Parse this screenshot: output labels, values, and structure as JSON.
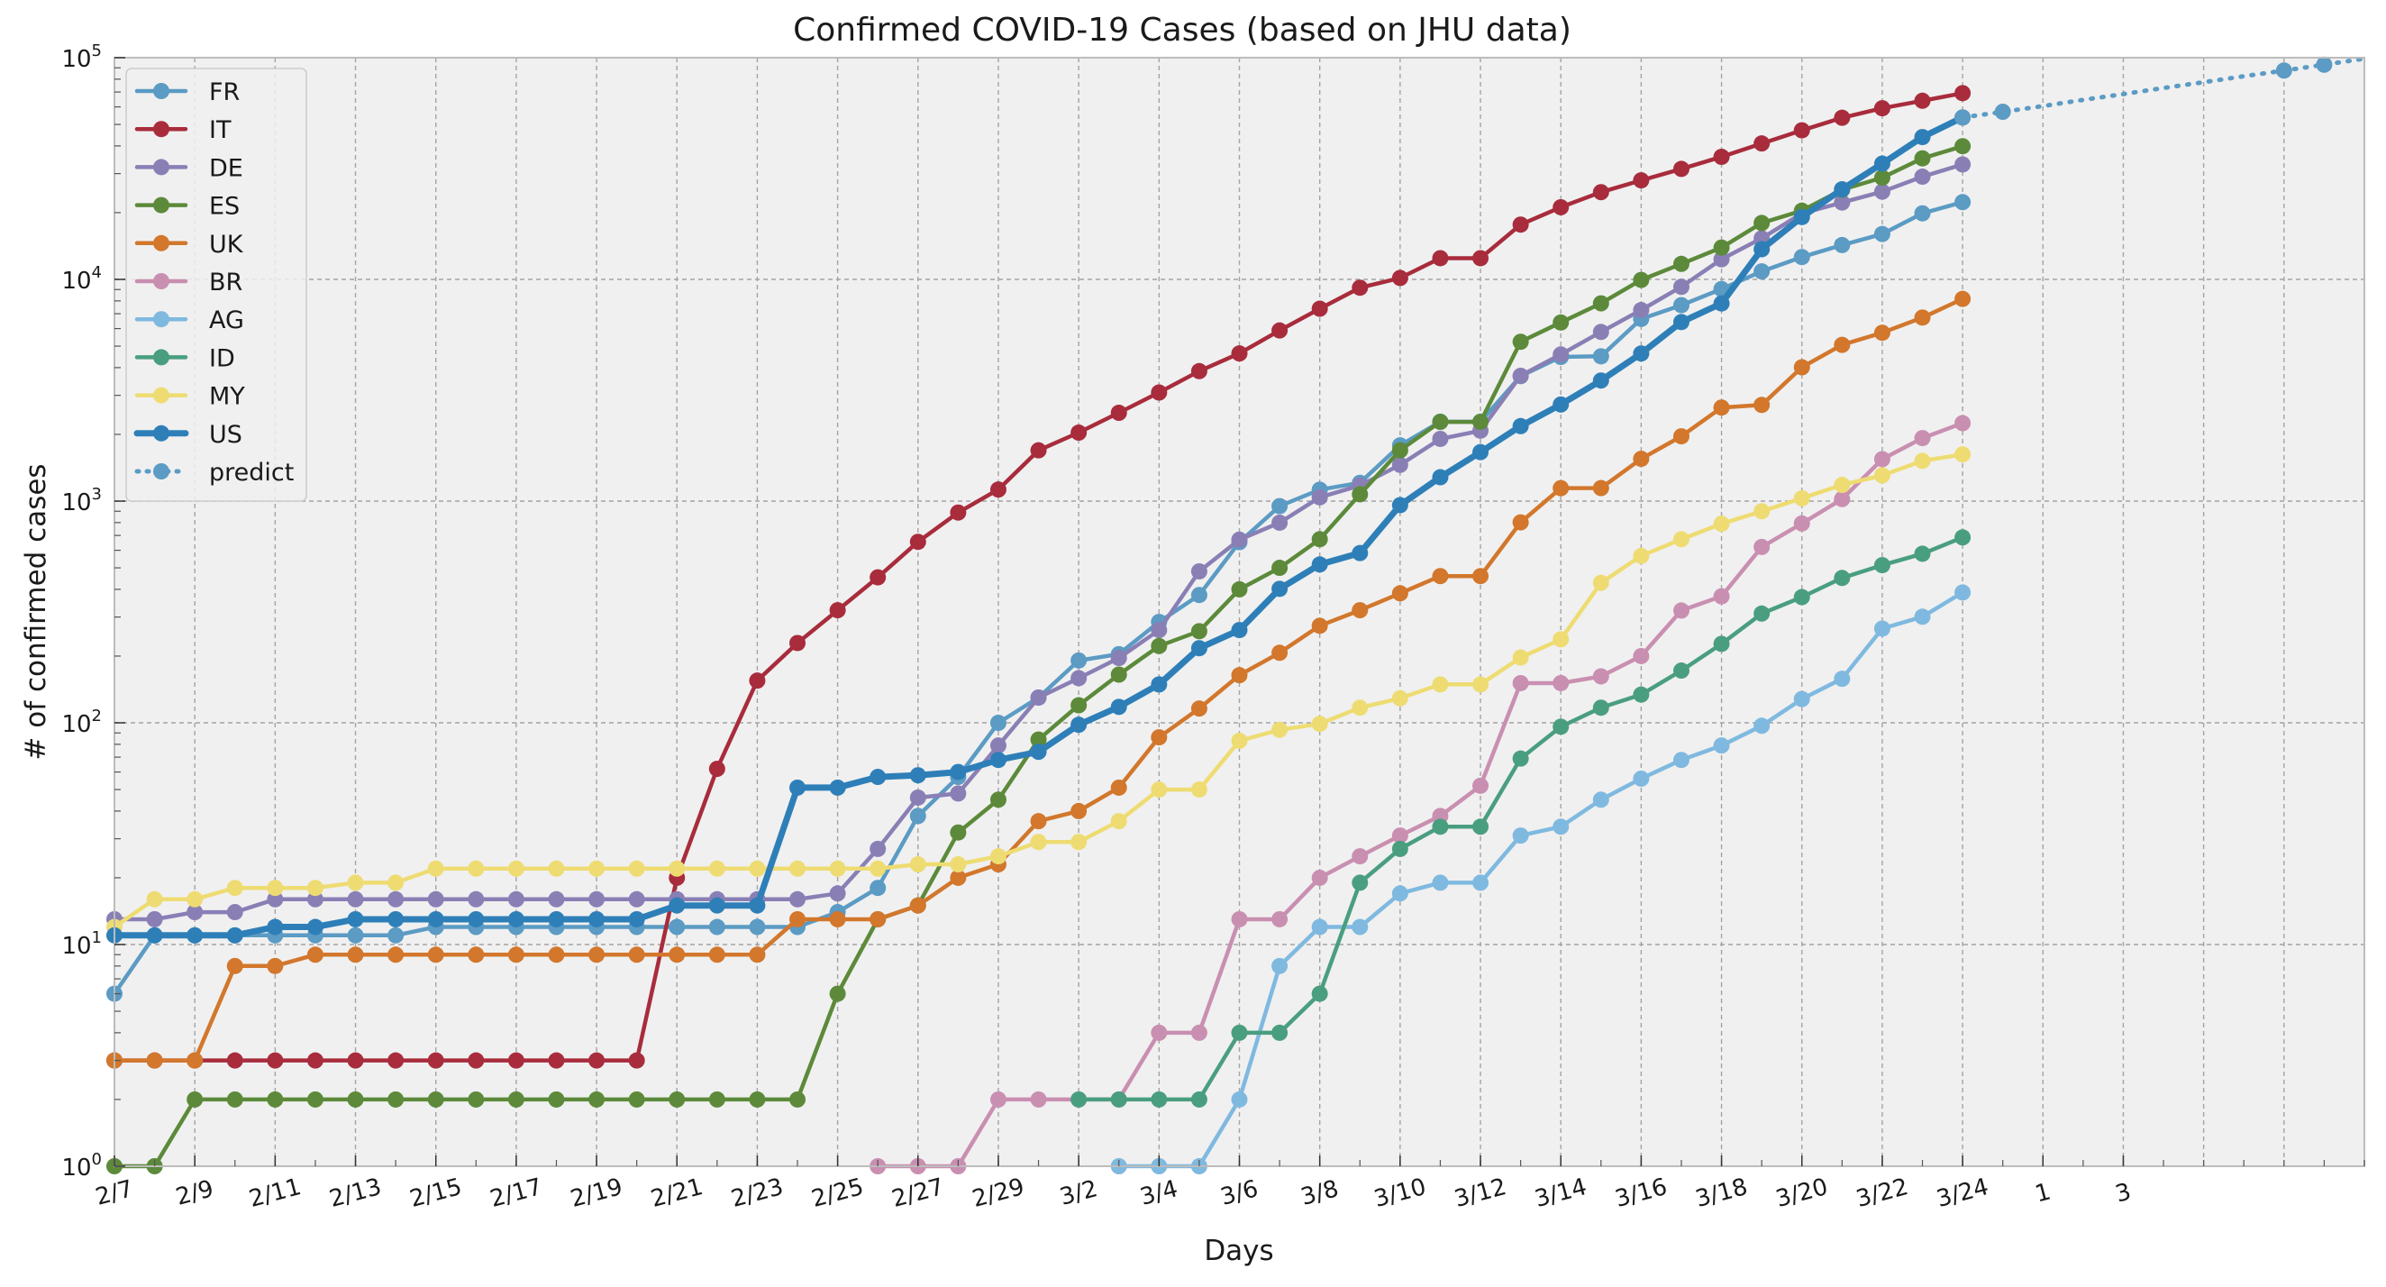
{
  "chart_data": {
    "type": "line",
    "title": "Confirmed COVID-19 Cases (based on JHU data)",
    "xlabel": "Days",
    "ylabel": "# of confirmed cases",
    "yscale": "log",
    "ylim": [
      1,
      100000
    ],
    "y_ticks": [
      {
        "value": 1,
        "base": "10",
        "exp": "0"
      },
      {
        "value": 10,
        "base": "10",
        "exp": "1"
      },
      {
        "value": 100,
        "base": "10",
        "exp": "2"
      },
      {
        "value": 1000,
        "base": "10",
        "exp": "3"
      },
      {
        "value": 10000,
        "base": "10",
        "exp": "4"
      },
      {
        "value": 100000,
        "base": "10",
        "exp": "5"
      }
    ],
    "x_start_date": "2/7",
    "x_end_date": "4/3",
    "x_tick_labels": [
      "2/7",
      "2/9",
      "2/11",
      "2/13",
      "2/15",
      "2/17",
      "2/19",
      "2/21",
      "2/23",
      "2/25",
      "2/27",
      "2/29",
      "3/2",
      "3/4",
      "3/6",
      "3/8",
      "3/10",
      "3/12",
      "3/14",
      "3/16",
      "3/18",
      "3/20",
      "3/22",
      "3/24",
      "1",
      "3"
    ],
    "x_dates": [
      "2/7",
      "2/8",
      "2/9",
      "2/10",
      "2/11",
      "2/12",
      "2/13",
      "2/14",
      "2/15",
      "2/16",
      "2/17",
      "2/18",
      "2/19",
      "2/20",
      "2/21",
      "2/22",
      "2/23",
      "2/24",
      "2/25",
      "2/26",
      "2/27",
      "2/28",
      "2/29",
      "3/1",
      "3/2",
      "3/3",
      "3/4",
      "3/5",
      "3/6",
      "3/7",
      "3/8",
      "3/9",
      "3/10",
      "3/11",
      "3/12",
      "3/13",
      "3/14",
      "3/15",
      "3/16",
      "3/17",
      "3/18",
      "3/19",
      "3/20",
      "3/21",
      "3/22",
      "3/23",
      "3/24"
    ],
    "grid": true,
    "legend_position": "top-left",
    "series": [
      {
        "name": "FR",
        "color": "#5b9bc4",
        "style": "solid",
        "dates": [
          "2/7",
          "2/8",
          "2/9",
          "2/10",
          "2/11",
          "2/12",
          "2/13",
          "2/14",
          "2/15",
          "2/16",
          "2/17",
          "2/18",
          "2/19",
          "2/20",
          "2/21",
          "2/22",
          "2/23",
          "2/24",
          "2/25",
          "2/26",
          "2/27",
          "2/28",
          "2/29",
          "3/1",
          "3/2",
          "3/3",
          "3/4",
          "3/5",
          "3/6",
          "3/7",
          "3/8",
          "3/9",
          "3/10",
          "3/11",
          "3/12",
          "3/13",
          "3/14",
          "3/15",
          "3/16",
          "3/17",
          "3/18",
          "3/19",
          "3/20",
          "3/21",
          "3/22",
          "3/23",
          "3/24"
        ],
        "values": [
          6,
          11,
          11,
          11,
          11,
          11,
          11,
          11,
          12,
          12,
          12,
          12,
          12,
          12,
          12,
          12,
          12,
          12,
          14,
          18,
          38,
          57,
          100,
          130,
          191,
          204,
          285,
          377,
          653,
          949,
          1126,
          1209,
          1784,
          2281,
          2281,
          3661,
          4469,
          4499,
          6633,
          7652,
          9043,
          10871,
          12612,
          14282,
          16018,
          19856,
          22304
        ]
      },
      {
        "name": "IT",
        "color": "#a82c3c",
        "style": "solid",
        "dates": [
          "2/7",
          "2/8",
          "2/9",
          "2/10",
          "2/11",
          "2/12",
          "2/13",
          "2/14",
          "2/15",
          "2/16",
          "2/17",
          "2/18",
          "2/19",
          "2/20",
          "2/21",
          "2/22",
          "2/23",
          "2/24",
          "2/25",
          "2/26",
          "2/27",
          "2/28",
          "2/29",
          "3/1",
          "3/2",
          "3/3",
          "3/4",
          "3/5",
          "3/6",
          "3/7",
          "3/8",
          "3/9",
          "3/10",
          "3/11",
          "3/12",
          "3/13",
          "3/14",
          "3/15",
          "3/16",
          "3/17",
          "3/18",
          "3/19",
          "3/20",
          "3/21",
          "3/22",
          "3/23",
          "3/24"
        ],
        "values": [
          3,
          3,
          3,
          3,
          3,
          3,
          3,
          3,
          3,
          3,
          3,
          3,
          3,
          3,
          20,
          62,
          155,
          229,
          322,
          453,
          655,
          888,
          1128,
          1694,
          2036,
          2502,
          3089,
          3858,
          4636,
          5883,
          7375,
          9172,
          10149,
          12462,
          12462,
          17660,
          21157,
          24747,
          27980,
          31506,
          35713,
          41035,
          47021,
          53578,
          59138,
          63927,
          69176
        ]
      },
      {
        "name": "DE",
        "color": "#8a7fb5",
        "style": "solid",
        "dates": [
          "2/7",
          "2/8",
          "2/9",
          "2/10",
          "2/11",
          "2/12",
          "2/13",
          "2/14",
          "2/15",
          "2/16",
          "2/17",
          "2/18",
          "2/19",
          "2/20",
          "2/21",
          "2/22",
          "2/23",
          "2/24",
          "2/25",
          "2/26",
          "2/27",
          "2/28",
          "2/29",
          "3/1",
          "3/2",
          "3/3",
          "3/4",
          "3/5",
          "3/6",
          "3/7",
          "3/8",
          "3/9",
          "3/10",
          "3/11",
          "3/12",
          "3/13",
          "3/14",
          "3/15",
          "3/16",
          "3/17",
          "3/18",
          "3/19",
          "3/20",
          "3/21",
          "3/22",
          "3/23",
          "3/24"
        ],
        "values": [
          13,
          13,
          14,
          14,
          16,
          16,
          16,
          16,
          16,
          16,
          16,
          16,
          16,
          16,
          16,
          16,
          16,
          16,
          17,
          27,
          46,
          48,
          79,
          130,
          159,
          196,
          262,
          482,
          670,
          799,
          1040,
          1176,
          1457,
          1908,
          2078,
          3675,
          4585,
          5795,
          7272,
          9257,
          12327,
          15320,
          19848,
          22213,
          24873,
          29056,
          32986
        ]
      },
      {
        "name": "ES",
        "color": "#5c8a3a",
        "style": "solid",
        "dates": [
          "2/7",
          "2/8",
          "2/9",
          "2/10",
          "2/11",
          "2/12",
          "2/13",
          "2/14",
          "2/15",
          "2/16",
          "2/17",
          "2/18",
          "2/19",
          "2/20",
          "2/21",
          "2/22",
          "2/23",
          "2/24",
          "2/25",
          "2/26",
          "2/27",
          "2/28",
          "2/29",
          "3/1",
          "3/2",
          "3/3",
          "3/4",
          "3/5",
          "3/6",
          "3/7",
          "3/8",
          "3/9",
          "3/10",
          "3/11",
          "3/12",
          "3/13",
          "3/14",
          "3/15",
          "3/16",
          "3/17",
          "3/18",
          "3/19",
          "3/20",
          "3/21",
          "3/22",
          "3/23",
          "3/24"
        ],
        "values": [
          1,
          1,
          2,
          2,
          2,
          2,
          2,
          2,
          2,
          2,
          2,
          2,
          2,
          2,
          2,
          2,
          2,
          2,
          6,
          13,
          15,
          32,
          45,
          84,
          120,
          165,
          222,
          259,
          400,
          500,
          673,
          1073,
          1695,
          2277,
          2277,
          5232,
          6391,
          7798,
          9942,
          11748,
          13910,
          17963,
          20410,
          25374,
          28768,
          35136,
          39885
        ]
      },
      {
        "name": "UK",
        "color": "#d2772c",
        "style": "solid",
        "dates": [
          "2/7",
          "2/8",
          "2/9",
          "2/10",
          "2/11",
          "2/12",
          "2/13",
          "2/14",
          "2/15",
          "2/16",
          "2/17",
          "2/18",
          "2/19",
          "2/20",
          "2/21",
          "2/22",
          "2/23",
          "2/24",
          "2/25",
          "2/26",
          "2/27",
          "2/28",
          "2/29",
          "3/1",
          "3/2",
          "3/3",
          "3/4",
          "3/5",
          "3/6",
          "3/7",
          "3/8",
          "3/9",
          "3/10",
          "3/11",
          "3/12",
          "3/13",
          "3/14",
          "3/15",
          "3/16",
          "3/17",
          "3/18",
          "3/19",
          "3/20",
          "3/21",
          "3/22",
          "3/23",
          "3/24"
        ],
        "values": [
          3,
          3,
          3,
          8,
          8,
          9,
          9,
          9,
          9,
          9,
          9,
          9,
          9,
          9,
          9,
          9,
          9,
          13,
          13,
          13,
          15,
          20,
          23,
          36,
          40,
          51,
          86,
          116,
          164,
          207,
          274,
          322,
          384,
          459,
          459,
          802,
          1144,
          1145,
          1551,
          1960,
          2642,
          2716,
          4014,
          5067,
          5745,
          6726,
          8164
        ]
      },
      {
        "name": "BR",
        "color": "#c98fb1",
        "style": "solid",
        "dates": [
          "2/26",
          "2/27",
          "2/28",
          "2/29",
          "3/1",
          "3/2",
          "3/3",
          "3/4",
          "3/5",
          "3/6",
          "3/7",
          "3/8",
          "3/9",
          "3/10",
          "3/11",
          "3/12",
          "3/13",
          "3/14",
          "3/15",
          "3/16",
          "3/17",
          "3/18",
          "3/19",
          "3/20",
          "3/21",
          "3/22",
          "3/23",
          "3/24"
        ],
        "values": [
          1,
          1,
          1,
          2,
          2,
          2,
          2,
          4,
          4,
          13,
          13,
          20,
          25,
          31,
          38,
          52,
          151,
          151,
          162,
          200,
          321,
          372,
          621,
          793,
          1021,
          1546,
          1924,
          2247
        ]
      },
      {
        "name": "AG",
        "color": "#7fb9e0",
        "style": "solid",
        "dates": [
          "3/3",
          "3/4",
          "3/5",
          "3/6",
          "3/7",
          "3/8",
          "3/9",
          "3/10",
          "3/11",
          "3/12",
          "3/13",
          "3/14",
          "3/15",
          "3/16",
          "3/17",
          "3/18",
          "3/19",
          "3/20",
          "3/21",
          "3/22",
          "3/23",
          "3/24"
        ],
        "values": [
          1,
          1,
          1,
          2,
          8,
          12,
          12,
          17,
          19,
          19,
          31,
          34,
          45,
          56,
          68,
          79,
          97,
          128,
          158,
          266,
          301,
          387
        ]
      },
      {
        "name": "ID",
        "color": "#4a9e80",
        "style": "solid",
        "dates": [
          "3/2",
          "3/3",
          "3/4",
          "3/5",
          "3/6",
          "3/7",
          "3/8",
          "3/9",
          "3/10",
          "3/11",
          "3/12",
          "3/13",
          "3/14",
          "3/15",
          "3/16",
          "3/17",
          "3/18",
          "3/19",
          "3/20",
          "3/21",
          "3/22",
          "3/23",
          "3/24"
        ],
        "values": [
          2,
          2,
          2,
          2,
          4,
          4,
          6,
          19,
          27,
          34,
          34,
          69,
          96,
          117,
          134,
          172,
          227,
          311,
          369,
          450,
          514,
          579,
          686
        ]
      },
      {
        "name": "MY",
        "color": "#eedc72",
        "style": "solid",
        "dates": [
          "2/7",
          "2/8",
          "2/9",
          "2/10",
          "2/11",
          "2/12",
          "2/13",
          "2/14",
          "2/15",
          "2/16",
          "2/17",
          "2/18",
          "2/19",
          "2/20",
          "2/21",
          "2/22",
          "2/23",
          "2/24",
          "2/25",
          "2/26",
          "2/27",
          "2/28",
          "2/29",
          "3/1",
          "3/2",
          "3/3",
          "3/4",
          "3/5",
          "3/6",
          "3/7",
          "3/8",
          "3/9",
          "3/10",
          "3/11",
          "3/12",
          "3/13",
          "3/14",
          "3/15",
          "3/16",
          "3/17",
          "3/18",
          "3/19",
          "3/20",
          "3/21",
          "3/22",
          "3/23",
          "3/24"
        ],
        "values": [
          12,
          16,
          16,
          18,
          18,
          18,
          19,
          19,
          22,
          22,
          22,
          22,
          22,
          22,
          22,
          22,
          22,
          22,
          22,
          22,
          23,
          23,
          25,
          29,
          29,
          36,
          50,
          50,
          83,
          93,
          99,
          117,
          129,
          149,
          149,
          197,
          238,
          428,
          566,
          673,
          790,
          900,
          1030,
          1183,
          1306,
          1518,
          1624
        ]
      },
      {
        "name": "US",
        "color": "#2e7fb8",
        "style": "solid",
        "thick": true,
        "dates": [
          "2/7",
          "2/8",
          "2/9",
          "2/10",
          "2/11",
          "2/12",
          "2/13",
          "2/14",
          "2/15",
          "2/16",
          "2/17",
          "2/18",
          "2/19",
          "2/20",
          "2/21",
          "2/22",
          "2/23",
          "2/24",
          "2/25",
          "2/26",
          "2/27",
          "2/28",
          "2/29",
          "3/1",
          "3/2",
          "3/3",
          "3/4",
          "3/5",
          "3/6",
          "3/7",
          "3/8",
          "3/9",
          "3/10",
          "3/11",
          "3/12",
          "3/13",
          "3/14",
          "3/15",
          "3/16",
          "3/17",
          "3/18",
          "3/19",
          "3/20",
          "3/21",
          "3/22",
          "3/23",
          "3/24"
        ],
        "values": [
          11,
          11,
          11,
          11,
          12,
          12,
          13,
          13,
          13,
          13,
          13,
          13,
          13,
          13,
          15,
          15,
          15,
          51,
          51,
          57,
          58,
          60,
          68,
          74,
          98,
          118,
          149,
          217,
          262,
          402,
          518,
          583,
          959,
          1281,
          1663,
          2179,
          2727,
          3499,
          4632,
          6421,
          7786,
          13680,
          19101,
          25493,
          33276,
          43847,
          53740
        ]
      },
      {
        "name": "predict",
        "color": "#5b9bc4",
        "style": "dotted",
        "dates": [
          "3/24",
          "3/25",
          "3/26",
          "3/27",
          "3/28",
          "3/29",
          "3/30",
          "3/31",
          "4/1",
          "4/2",
          "4/3"
        ],
        "values": [
          53740,
          57000,
          60500,
          64500,
          68500,
          73000,
          77500,
          82500,
          87500,
          93000,
          99000
        ],
        "markers": [
          "3/24",
          "3/25",
          "4/1",
          "4/2"
        ]
      }
    ]
  }
}
